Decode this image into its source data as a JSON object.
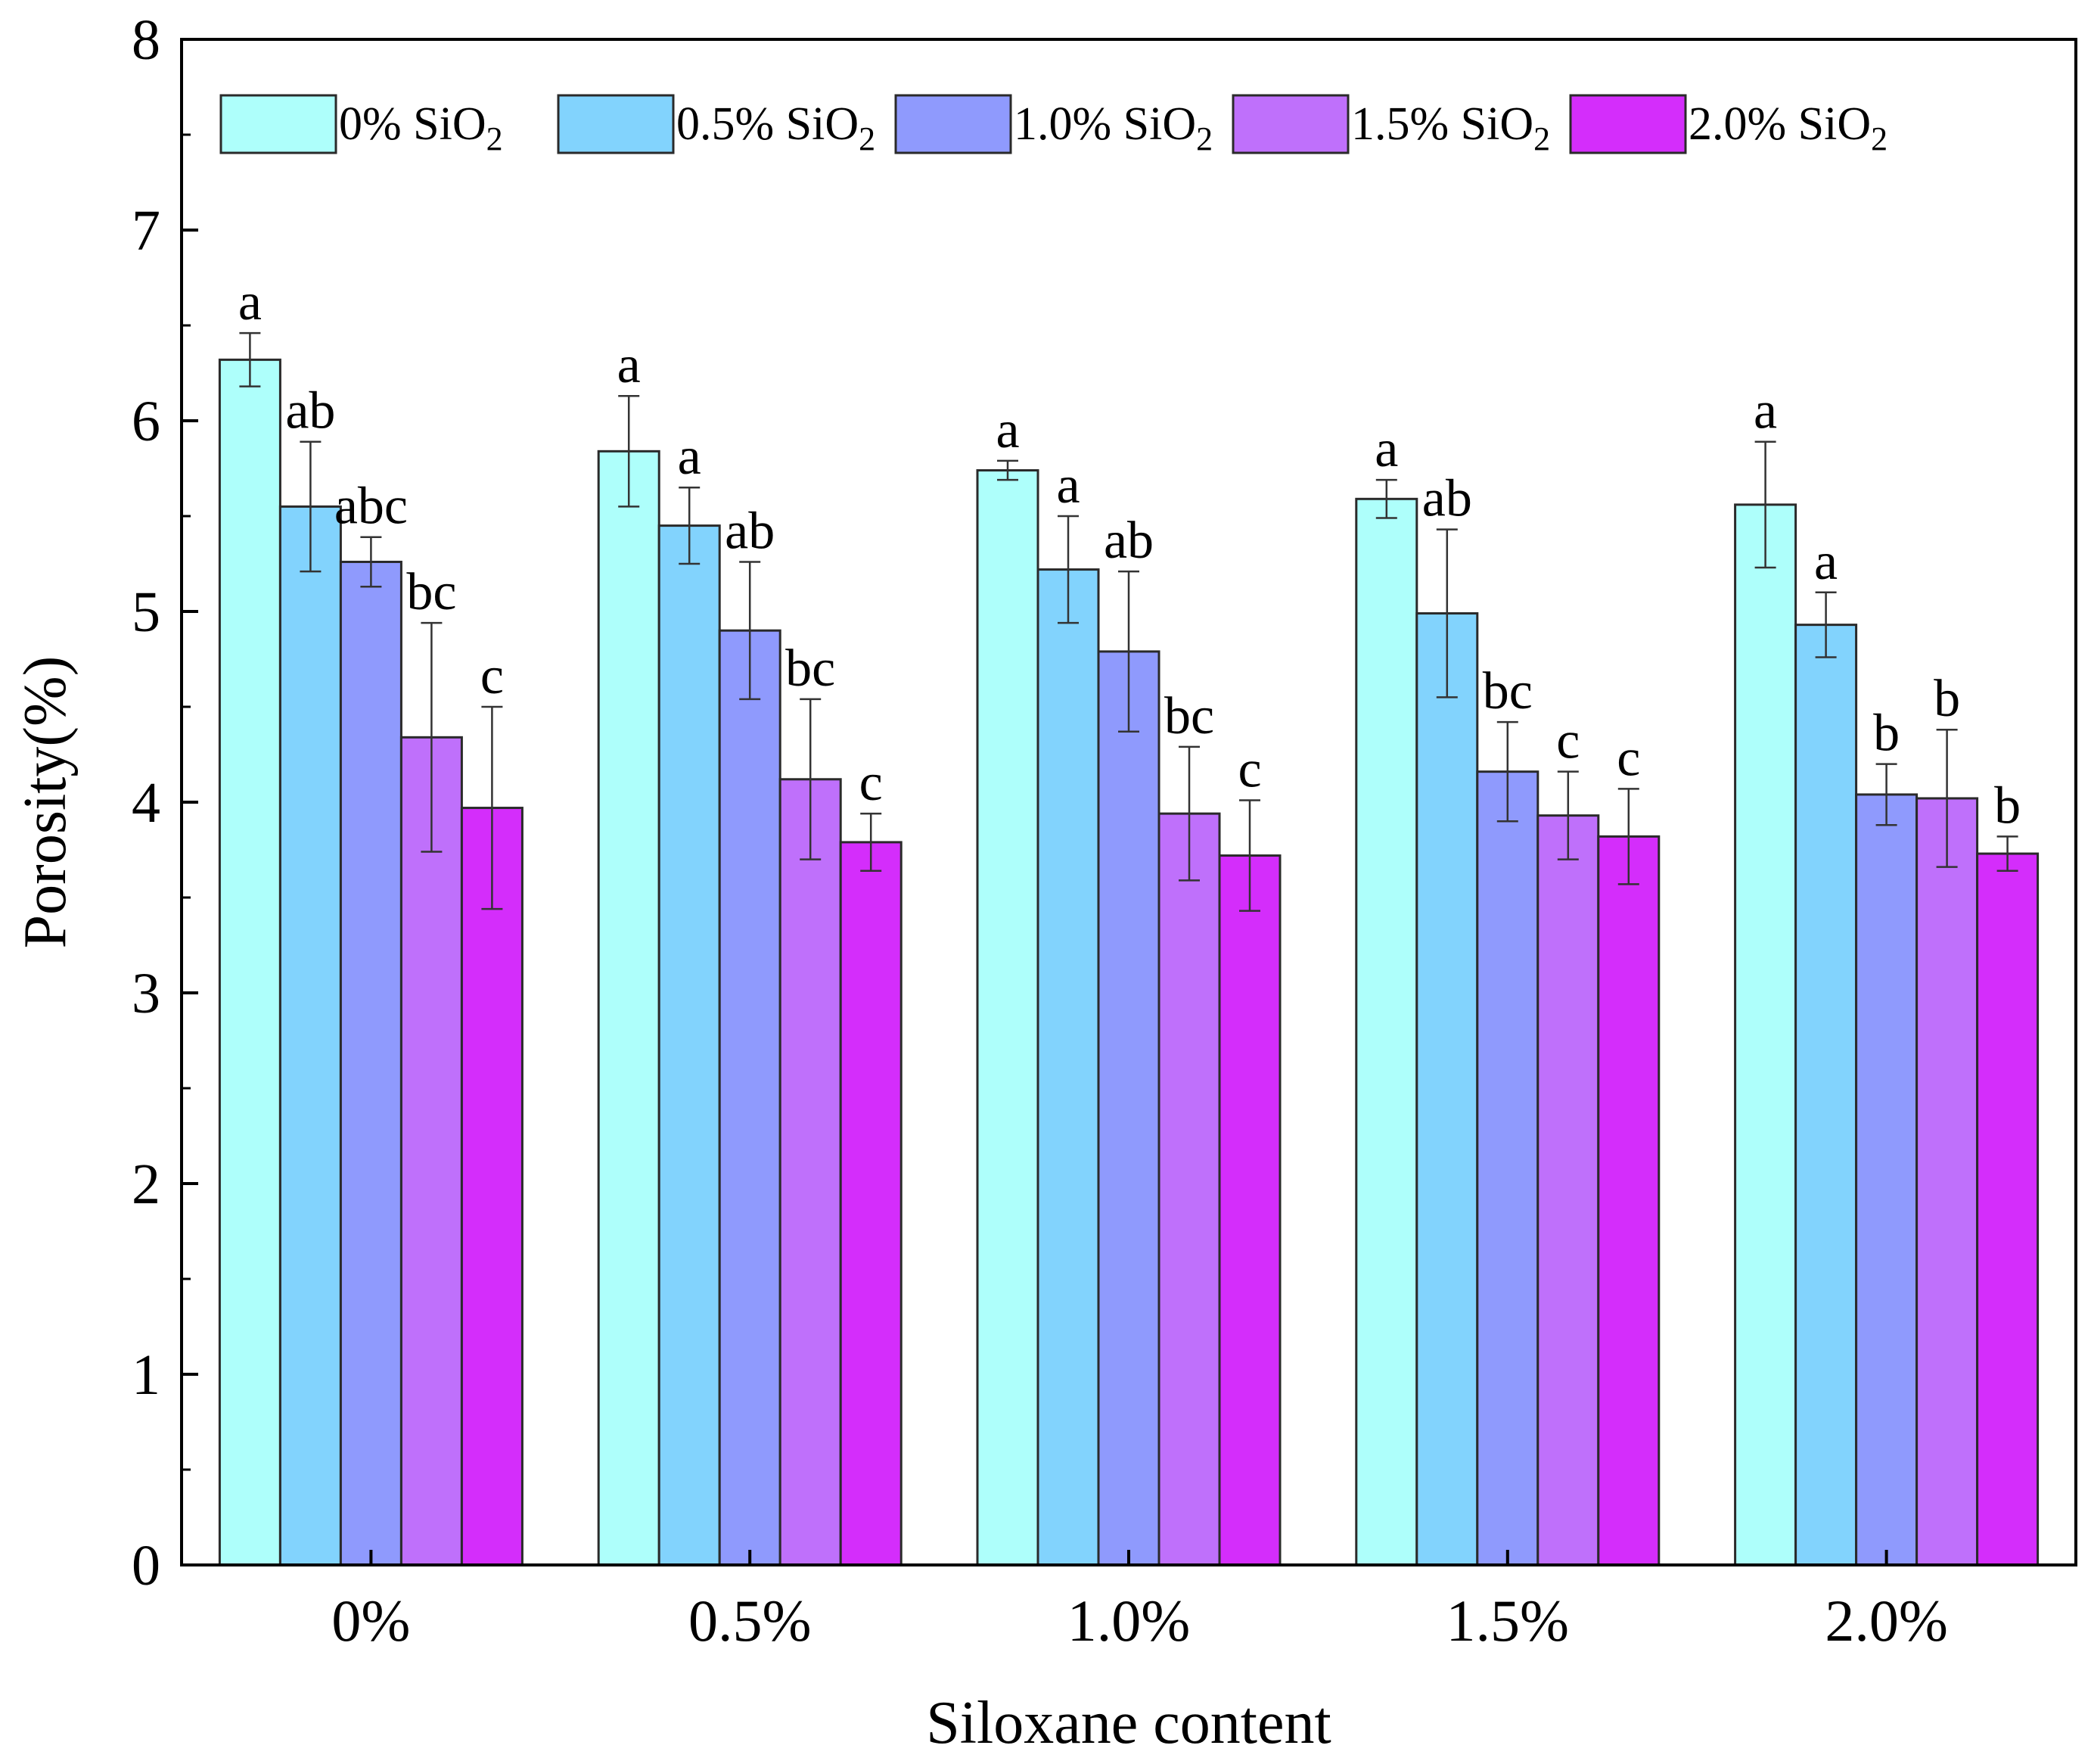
{
  "chart_data": {
    "type": "bar",
    "title": "",
    "xlabel": "Siloxane content",
    "ylabel": "Porosity(%)",
    "ylim": [
      0,
      8
    ],
    "yticks": [
      "0",
      "1",
      "2",
      "3",
      "4",
      "5",
      "6",
      "7",
      "8"
    ],
    "categories": [
      "0%",
      "0.5%",
      "1.0%",
      "1.5%",
      "2.0%"
    ],
    "legend_position": "top",
    "series": [
      {
        "name": "0% SiO2",
        "name_main": "0% SiO",
        "name_sub": "2",
        "color": "#aefffb",
        "values": [
          6.32,
          5.84,
          5.74,
          5.59,
          5.56
        ],
        "errors": [
          0.14,
          0.29,
          0.05,
          0.1,
          0.33
        ],
        "letters": [
          "a",
          "a",
          "a",
          "a",
          "a"
        ]
      },
      {
        "name": "0.5% SiO2",
        "name_main": "0.5% SiO",
        "name_sub": "2",
        "color": "#82d3fd",
        "values": [
          5.55,
          5.45,
          5.22,
          4.99,
          4.93
        ],
        "errors": [
          0.34,
          0.2,
          0.28,
          0.44,
          0.17
        ],
        "letters": [
          "ab",
          "a",
          "a",
          "ab",
          "a"
        ]
      },
      {
        "name": "1.0% SiO2",
        "name_main": "1.0% SiO",
        "name_sub": "2",
        "color": "#8f9afd",
        "values": [
          5.26,
          4.9,
          4.79,
          4.16,
          4.04
        ],
        "errors": [
          0.13,
          0.36,
          0.42,
          0.26,
          0.16
        ],
        "letters": [
          "abc",
          "ab",
          "ab",
          "bc",
          "b"
        ]
      },
      {
        "name": "1.5% SiO2",
        "name_main": "1.5% SiO",
        "name_sub": "2",
        "color": "#bf70fb",
        "values": [
          4.34,
          4.12,
          3.94,
          3.93,
          4.02
        ],
        "errors": [
          0.6,
          0.42,
          0.35,
          0.23,
          0.36
        ],
        "letters": [
          "bc",
          "bc",
          "bc",
          "c",
          "b"
        ]
      },
      {
        "name": "2.0% SiO2",
        "name_main": "2.0% SiO",
        "name_sub": "2",
        "color": "#d42dfb",
        "values": [
          3.97,
          3.79,
          3.72,
          3.82,
          3.73
        ],
        "errors": [
          0.53,
          0.15,
          0.29,
          0.25,
          0.09
        ],
        "letters": [
          "c",
          "c",
          "c",
          "c",
          "b"
        ]
      }
    ]
  }
}
